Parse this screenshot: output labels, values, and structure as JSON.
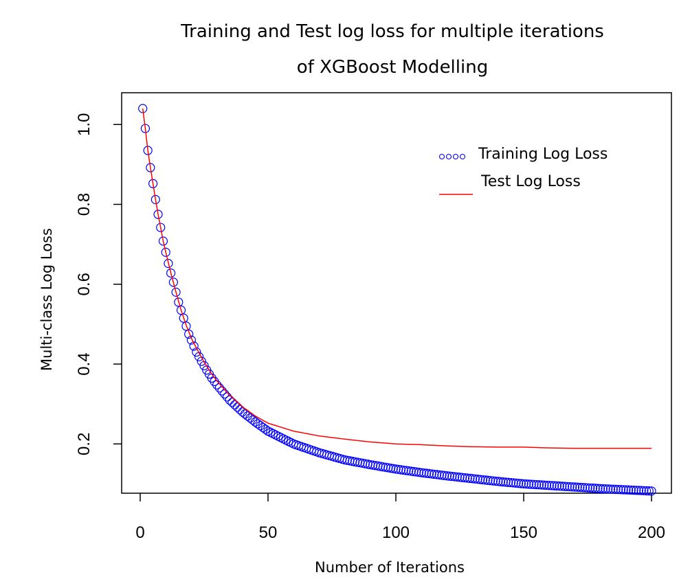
{
  "chart_data": {
    "type": "line",
    "title_line1": "Training and Test log loss for multiple iterations",
    "title_line2": "of XGBoost Modelling",
    "xlabel": "Number of Iterations",
    "ylabel": "Multi-class Log Loss",
    "xlim": [
      0,
      200
    ],
    "ylim": [
      0.08,
      1.04
    ],
    "x_ticks": [
      0,
      50,
      100,
      150,
      200
    ],
    "y_ticks": [
      0.2,
      0.4,
      0.6,
      0.8,
      1.0
    ],
    "y_tick_labels": [
      "0.2",
      "0.4",
      "0.6",
      "0.8",
      "1.0"
    ],
    "grid": false,
    "legend_position": "top-right",
    "series": [
      {
        "name": "Training Log Loss",
        "style": "points",
        "marker": "open-circle",
        "color": "#0000ff",
        "x": [
          1,
          2,
          3,
          4,
          5,
          6,
          7,
          8,
          9,
          10,
          11,
          12,
          13,
          14,
          15,
          16,
          17,
          18,
          19,
          20,
          22,
          24,
          26,
          28,
          30,
          35,
          40,
          45,
          50,
          60,
          70,
          80,
          90,
          100,
          110,
          120,
          130,
          140,
          150,
          160,
          170,
          180,
          190,
          200
        ],
        "y": [
          1.04,
          0.99,
          0.935,
          0.892,
          0.852,
          0.812,
          0.775,
          0.742,
          0.708,
          0.68,
          0.652,
          0.628,
          0.605,
          0.58,
          0.555,
          0.535,
          0.515,
          0.495,
          0.475,
          0.46,
          0.43,
          0.407,
          0.385,
          0.365,
          0.348,
          0.31,
          0.28,
          0.255,
          0.232,
          0.2,
          0.178,
          0.16,
          0.148,
          0.137,
          0.128,
          0.12,
          0.113,
          0.106,
          0.1,
          0.096,
          0.092,
          0.088,
          0.085,
          0.082
        ]
      },
      {
        "name": "Test Log Loss",
        "style": "line",
        "color": "#ff0000",
        "x": [
          1,
          2,
          3,
          4,
          5,
          6,
          7,
          8,
          9,
          10,
          12,
          14,
          16,
          18,
          20,
          22,
          25,
          28,
          30,
          35,
          40,
          45,
          50,
          60,
          70,
          80,
          90,
          100,
          110,
          120,
          130,
          140,
          150,
          160,
          170,
          180,
          190,
          200
        ],
        "y": [
          1.04,
          0.99,
          0.935,
          0.892,
          0.852,
          0.812,
          0.775,
          0.742,
          0.708,
          0.68,
          0.628,
          0.58,
          0.535,
          0.497,
          0.465,
          0.44,
          0.405,
          0.375,
          0.358,
          0.322,
          0.293,
          0.27,
          0.252,
          0.232,
          0.22,
          0.212,
          0.205,
          0.2,
          0.198,
          0.195,
          0.193,
          0.192,
          0.192,
          0.19,
          0.189,
          0.189,
          0.189,
          0.189
        ]
      }
    ]
  }
}
